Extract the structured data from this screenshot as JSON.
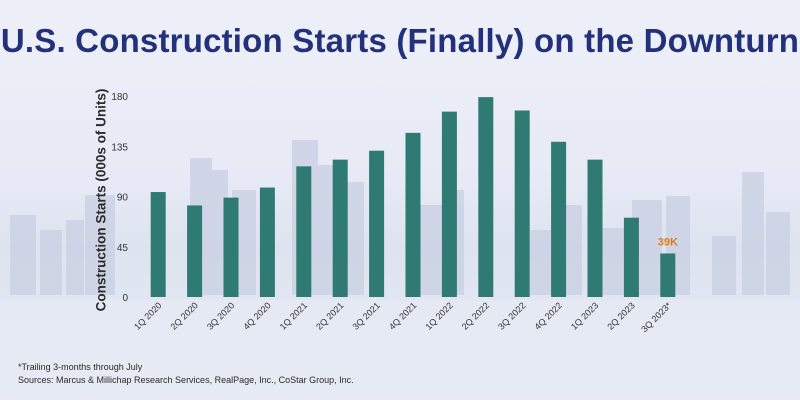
{
  "title": "U.S. Construction Starts (Finally) on the Downturn",
  "footnote": "*Trailing 3-months through July",
  "sources": "Sources: Marcus & Millichap Research Services, RealPage, Inc., CoStar Group, Inc.",
  "colors": {
    "bar": "#2f7a72",
    "title": "#22317a",
    "annotation": "#e07d1a",
    "axis_text": "#333333"
  },
  "chart_data": {
    "type": "bar",
    "title": "U.S. Construction Starts (Finally) on the Downturn",
    "xlabel": "",
    "ylabel": "Construction Starts (000s of Units)",
    "ylim": [
      0,
      180
    ],
    "yticks": [
      "0",
      "45",
      "90",
      "135",
      "180"
    ],
    "grid": false,
    "categories": [
      "1Q 2020",
      "2Q 2020",
      "3Q 2020",
      "4Q 2020",
      "1Q 2021",
      "2Q 2021",
      "3Q 2021",
      "4Q 2021",
      "1Q 2022",
      "2Q 2022",
      "3Q 2022",
      "4Q 2022",
      "1Q 2023",
      "2Q 2023",
      "3Q 2023*"
    ],
    "values": [
      94,
      82,
      89,
      98,
      117,
      123,
      131,
      147,
      166,
      179,
      167,
      139,
      123,
      71,
      39
    ],
    "annotations": [
      {
        "category": "3Q 2023*",
        "text": "39K"
      }
    ]
  }
}
